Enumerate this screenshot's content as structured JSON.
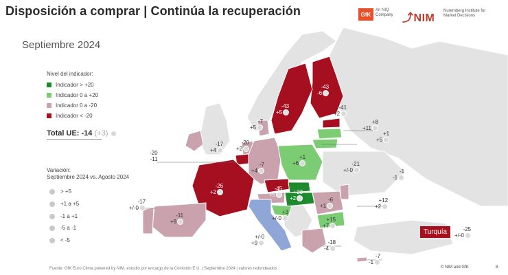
{
  "header": {
    "title": "Disposición a comprar | Continúa la recuperación",
    "subtitle": "Septiembre 2024",
    "gfk_logo": "GfK",
    "gfk_tagline": "An NIQ Company",
    "nim_logo": "NIM",
    "nim_tagline": "Nuremberg Institute for Market Decisions"
  },
  "legend": {
    "title": "Nivel del indicador:",
    "items": [
      {
        "label": "Indicador > +20",
        "color": "#1e8a2e"
      },
      {
        "label": "Indicador 0 a +20",
        "color": "#7ccc74"
      },
      {
        "label": "Indicador 0 a -20",
        "color": "#c9a2ae"
      },
      {
        "label": "Indicador < -20",
        "color": "#a50f20"
      }
    ]
  },
  "total": {
    "label": "Total UE: -14",
    "change": "(+3)"
  },
  "variation": {
    "title": "Variación:\nSeptiembre 2024 vs. Agosto 2024",
    "items": [
      "> +5",
      "+1 a +5",
      "-1 a +1",
      "-5 a -1",
      "< -5"
    ]
  },
  "turkey": {
    "label": "Turquía",
    "value": "-25",
    "change": "+/-0"
  },
  "countries": [
    {
      "name": "Finland",
      "value": "-43",
      "change": "-6"
    },
    {
      "name": "Sweden",
      "value": "-43",
      "change": "+5"
    },
    {
      "name": "Estonia",
      "value": "-41",
      "change": "+2"
    },
    {
      "name": "Latvia",
      "value": "+8",
      "change": "+11"
    },
    {
      "name": "Lithuania",
      "value": "+1",
      "change": "+5"
    },
    {
      "name": "Denmark",
      "value": "-7",
      "change": "+5"
    },
    {
      "name": "Ireland",
      "value": "-17",
      "change": "+4"
    },
    {
      "name": "Netherlands",
      "value": "-20",
      "change": "+2"
    },
    {
      "name": "Belgium",
      "value": "-20",
      "change": "-11"
    },
    {
      "name": "Germany",
      "value": "-7",
      "change": "+4"
    },
    {
      "name": "Poland",
      "value": "+1",
      "change": "+6"
    },
    {
      "name": "Ukraine",
      "value": "-21",
      "change": "+/-0"
    },
    {
      "name": "Belarus",
      "value": "-1",
      "change": "-1"
    },
    {
      "name": "France",
      "value": "-26",
      "change": "+2"
    },
    {
      "name": "Czechia",
      "value": "-45",
      "change": "+5"
    },
    {
      "name": "Slovakia",
      "value": "+23",
      "change": "+2"
    },
    {
      "name": "Romania",
      "value": "-6",
      "change": "+1"
    },
    {
      "name": "Moldova",
      "value": "+12",
      "change": "+2"
    },
    {
      "name": "Spain",
      "value": "-11",
      "change": "+8"
    },
    {
      "name": "Portugal",
      "value": "-17",
      "change": "+/-0"
    },
    {
      "name": "Italy",
      "value": "+/-0",
      "change": "+9"
    },
    {
      "name": "Croatia",
      "value": "+3",
      "change": "+/-0"
    },
    {
      "name": "Bulgaria",
      "value": "+15",
      "change": "+7"
    },
    {
      "name": "Greece",
      "value": "-18",
      "change": "-4"
    },
    {
      "name": "Cyprus",
      "value": "-7",
      "change": "-1"
    }
  ],
  "footer": {
    "source": "Fuente: GfK Euro Clima powered by NIM, estudio por encargo de la Comisión E.U. | Septiembre 2024 | valores redondeados",
    "copyright": "© NIM and GfK",
    "page": "8"
  }
}
